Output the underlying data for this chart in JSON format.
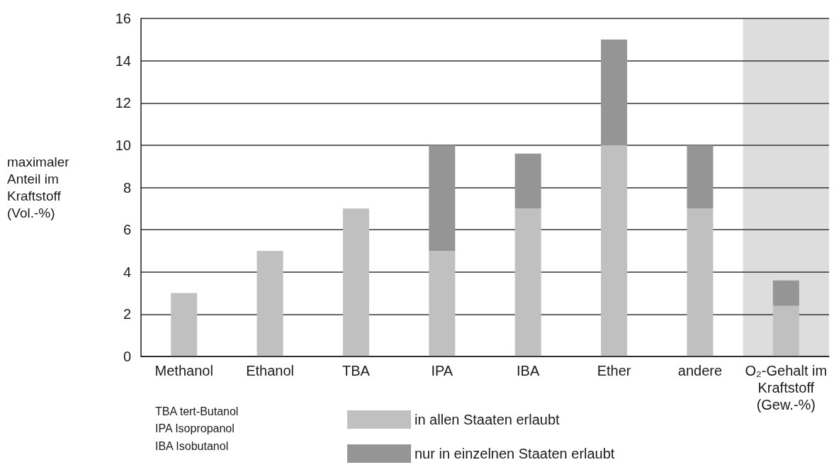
{
  "chart_data": {
    "type": "bar",
    "ylabel": "maximaler Anteil im Kraftstoff (Vol.-%)",
    "categories": [
      "Methanol",
      "Ethanol",
      "TBA",
      "IPA",
      "IBA",
      "Ether",
      "andere",
      "O₂-Gehalt im Kraftstoff (Gew.-%)"
    ],
    "series": [
      {
        "name": "in allen Staaten erlaubt",
        "color": "#c0c0c0",
        "values": [
          3,
          5,
          7,
          5,
          7,
          10,
          7,
          2.4
        ]
      },
      {
        "name": "nur in einzelnen Staaten erlaubt",
        "color": "#959595",
        "values": [
          null,
          null,
          null,
          5,
          2.6,
          5,
          3,
          1.2
        ]
      }
    ],
    "stacked": true,
    "ylim": [
      0,
      16
    ],
    "yticks": [
      0,
      2,
      4,
      6,
      8,
      10,
      12,
      14,
      16
    ],
    "grid": "y",
    "legend": "bottom",
    "bands": [
      {
        "axis": "x",
        "from": "O₂-Gehalt im Kraftstoff (Gew.-%)",
        "to": "O₂-Gehalt im Kraftstoff (Gew.-%)",
        "color": "#dddddd"
      }
    ],
    "annotations": [
      "TBA tert-Butanol",
      "IPA Isopropanol",
      "IBA Isobutanol"
    ]
  }
}
